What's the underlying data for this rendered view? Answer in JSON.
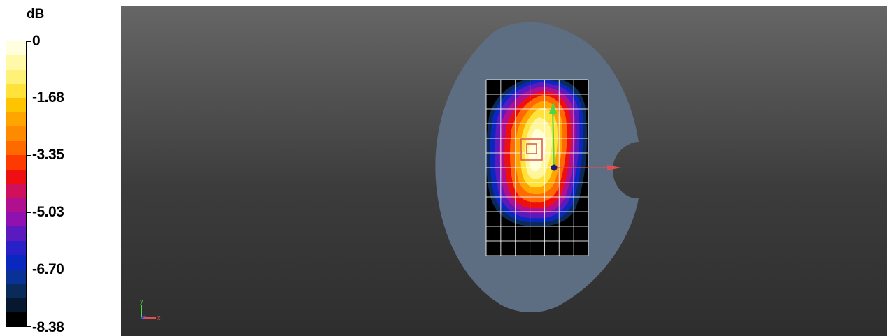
{
  "legend": {
    "unit": "dB",
    "ticks": [
      {
        "label": "0"
      },
      {
        "label": "-1.68"
      },
      {
        "label": "-3.35"
      },
      {
        "label": "-5.03"
      },
      {
        "label": "-6.70"
      },
      {
        "label": "-8.38"
      }
    ],
    "colors": [
      "#ffffe0",
      "#fff9a8",
      "#fff176",
      "#ffe23a",
      "#ffc400",
      "#ffa500",
      "#ff8a00",
      "#ff6a00",
      "#ff3a00",
      "#ee1010",
      "#d0105a",
      "#b0108f",
      "#9010b0",
      "#5a1abd",
      "#2a20c8",
      "#0a28c0",
      "#0a3296",
      "#0a2a5a",
      "#061830",
      "#000000"
    ]
  },
  "viewport": {
    "axis_triad": {
      "x_label": "x",
      "y_label": "y"
    },
    "colors": {
      "phantom": "#5d6e83",
      "grid_line": "#ffffff",
      "source_marker": "#e05050",
      "y_arrow": "#4cd64c",
      "x_arrow": "#e05050",
      "origin_dot": "#1a1a80"
    }
  }
}
